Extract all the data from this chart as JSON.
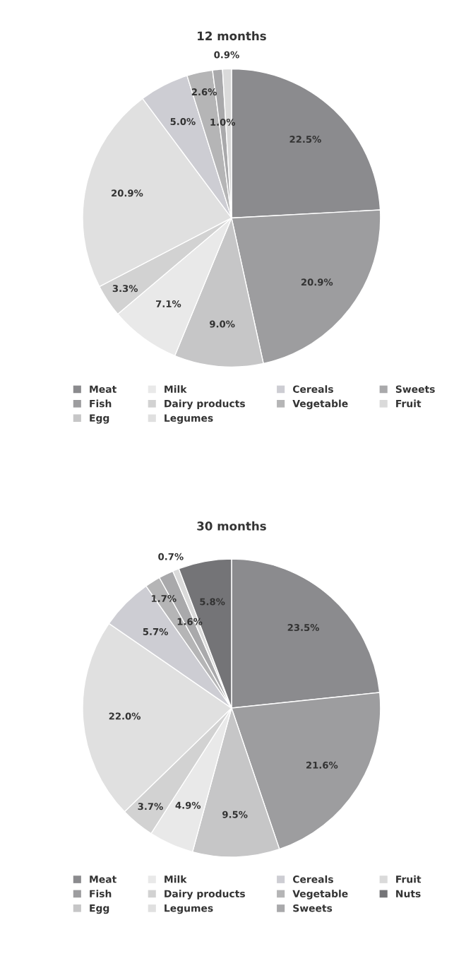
{
  "chart_data": [
    {
      "type": "pie",
      "title": "12 months",
      "legend": "bottom",
      "data_labels": true,
      "categories": [
        "Meat",
        "Fish",
        "Egg",
        "Milk",
        "Dairy products",
        "Legumes",
        "Cereals",
        "Vegetable",
        "Sweets",
        "Fruit"
      ],
      "values": [
        22.5,
        20.9,
        9.0,
        7.1,
        3.3,
        20.9,
        5.0,
        2.6,
        1.0,
        0.9
      ],
      "value_labels": [
        "22.5%",
        "20.9%",
        "9.0%",
        "7.1%",
        "3.3%",
        "20.9%",
        "5.0%",
        "2.6%",
        "1.0%",
        "0.9%"
      ],
      "colors": [
        "#8b8b8e",
        "#9d9d9f",
        "#c6c6c7",
        "#e9e9e9",
        "#d2d2d2",
        "#e0e0e0",
        "#cdcdd3",
        "#b5b5b6",
        "#a9a9ab",
        "#dadada"
      ]
    },
    {
      "type": "pie",
      "title": "30 months",
      "legend": "bottom",
      "data_labels": true,
      "categories": [
        "Meat",
        "Fish",
        "Egg",
        "Milk",
        "Dairy products",
        "Legumes",
        "Cereals",
        "Vegetable",
        "Sweets",
        "Fruit",
        "Nuts"
      ],
      "values": [
        23.5,
        21.6,
        9.5,
        4.9,
        3.7,
        22.0,
        5.7,
        1.7,
        1.6,
        0.7,
        5.8
      ],
      "value_labels": [
        "23.5%",
        "21.6%",
        "9.5%",
        "4.9%",
        "3.7%",
        "22.0%",
        "5.7%",
        "1.7%",
        "1.6%",
        "0.7%",
        "5.8%"
      ],
      "colors": [
        "#8b8b8e",
        "#9d9d9f",
        "#c6c6c7",
        "#e9e9e9",
        "#d2d2d2",
        "#e0e0e0",
        "#cdcdd3",
        "#b5b5b6",
        "#a9a9ab",
        "#dadada",
        "#747477"
      ]
    }
  ]
}
